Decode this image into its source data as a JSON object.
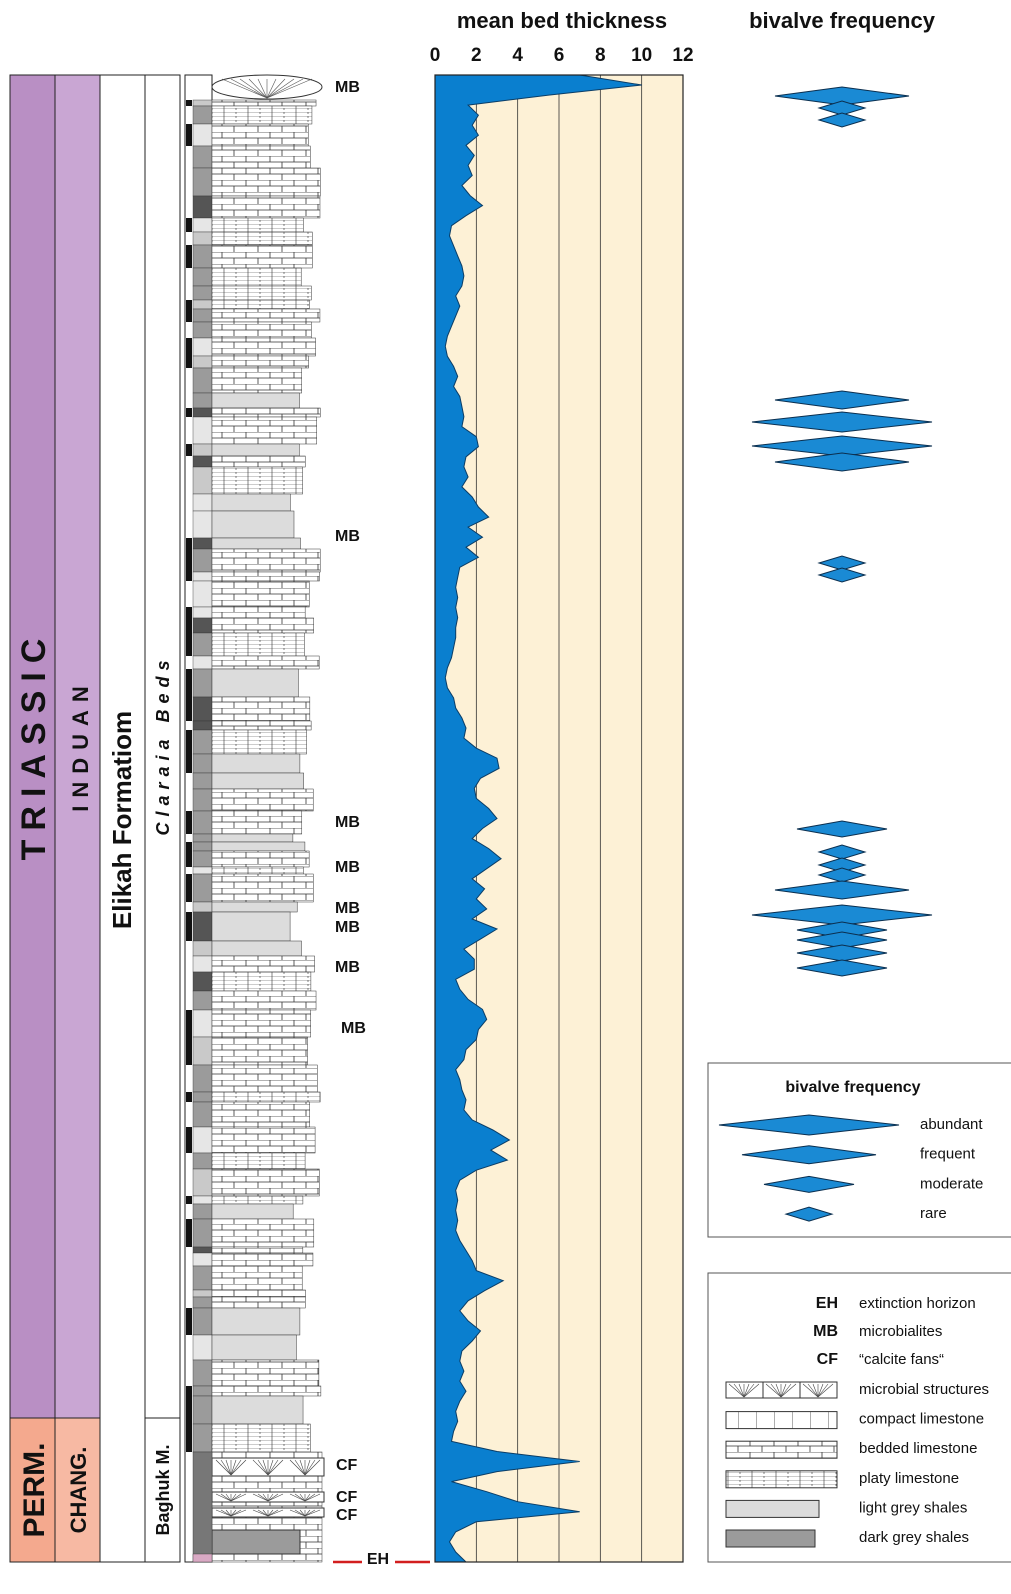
{
  "chart_data": {
    "type": "area",
    "title": "mean bed thickness",
    "values": [
      7,
      10,
      5.5,
      1.6,
      2.1,
      1.8,
      2.1,
      1.5,
      1.9,
      1.6,
      1.8,
      1.3,
      1.7,
      2.3,
      1.5,
      0.8,
      0.7,
      0.9,
      1.1,
      1.3,
      1.4,
      1.3,
      1.0,
      1.2,
      1.0,
      0.8,
      0.6,
      0.5,
      0.6,
      0.9,
      1.1,
      0.9,
      1.2,
      1.3,
      1.4,
      1.3,
      2.0,
      2.1,
      1.5,
      1.4,
      1.6,
      1.3,
      1.8,
      2.1,
      2.6,
      1.6,
      2.3,
      1.5,
      2.1,
      1.2,
      1.1,
      1.0,
      1.1,
      1.0,
      1.1,
      1.0,
      1.0,
      0.9,
      0.8,
      0.6,
      0.5,
      0.6,
      0.9,
      1.0,
      1.3,
      1.5,
      1.4,
      2.0,
      3.0,
      3.1,
      2.2,
      1.9,
      2.0,
      2.6,
      3.0,
      2.3,
      1.8,
      2.6,
      3.2,
      2.5,
      1.8,
      2.4,
      2.0,
      2.5,
      1.8,
      3.0,
      2.2,
      1.4,
      1.9,
      1.9,
      1.0,
      1.2,
      1.6,
      2.3,
      2.5,
      2.1,
      2.0,
      1.5,
      1.4,
      1.0,
      1.2,
      1.3,
      1.5,
      1.4,
      1.8,
      2.8,
      3.6,
      2.7,
      3.5,
      2.0,
      1.2,
      1.0,
      1.1,
      1.0,
      1.1,
      1.0,
      1.2,
      1.5,
      1.8,
      2.0,
      3.3,
      2.4,
      1.6,
      1.2,
      1.6,
      2.2,
      1.8,
      1.3,
      1.2,
      1.4,
      1.2,
      1.5,
      1.2,
      1.0,
      1.1,
      0.9,
      0.8,
      3.0,
      7.0,
      3.0,
      0.8,
      2.5,
      4.0,
      7.0,
      2.0,
      1.0,
      0.7,
      1.0,
      1.5
    ],
    "color": "#0a7fcf",
    "xlim": [
      0,
      12
    ],
    "xticks": [
      0,
      2,
      4,
      6,
      8,
      10,
      12
    ],
    "grid": true
  },
  "bivalve_frequency": {
    "title": "bivalve frequency",
    "color": "#1a8ad4",
    "occurrences": [
      "frequent",
      "rare",
      "rare",
      "frequent",
      "abundant",
      "abundant",
      "frequent",
      "rare",
      "rare",
      "moderate",
      "rare",
      "rare",
      "rare",
      "frequent",
      "abundant",
      "moderate",
      "moderate",
      "moderate",
      "moderate"
    ]
  },
  "stratigraphy": {
    "systems": [
      "TRIASSIC",
      "PERM."
    ],
    "stages": [
      "INDUAN",
      "CHANG."
    ],
    "formation": "Elikah Formatiom",
    "members": [
      "Claraia Beds",
      "Baghuk M."
    ],
    "markers": [
      "MB",
      "MB",
      "MB",
      "MB",
      "MB",
      "MB",
      "MB",
      "MB",
      "CF",
      "CF",
      "CF",
      "EH"
    ]
  },
  "legend_frequency": {
    "title": "bivalve frequency",
    "items": [
      "abundant",
      "frequent",
      "moderate",
      "rare"
    ]
  },
  "legend_symbols": {
    "items": [
      {
        "symbol": "EH",
        "label": "extinction horizon"
      },
      {
        "symbol": "MB",
        "label": "microbialites"
      },
      {
        "symbol": "CF",
        "label": "“calcite fans“"
      }
    ],
    "patterns": [
      "microbial structures",
      "compact limestone",
      "bedded limestone",
      "platy limestone",
      "light grey shales",
      "dark grey shales"
    ]
  }
}
